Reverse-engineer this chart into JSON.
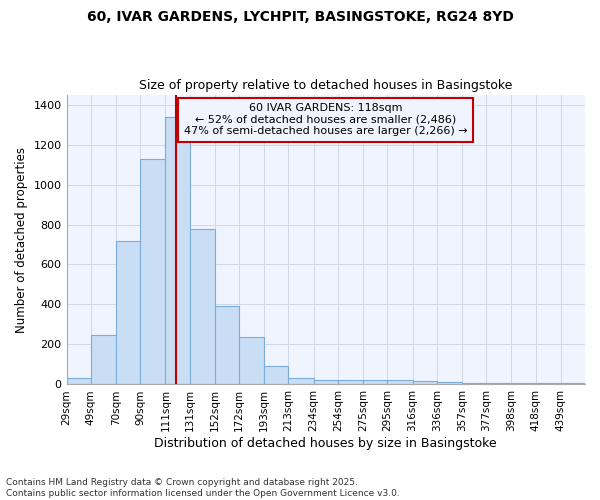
{
  "title1": "60, IVAR GARDENS, LYCHPIT, BASINGSTOKE, RG24 8YD",
  "title2": "Size of property relative to detached houses in Basingstoke",
  "xlabel": "Distribution of detached houses by size in Basingstoke",
  "ylabel": "Number of detached properties",
  "footer1": "Contains HM Land Registry data © Crown copyright and database right 2025.",
  "footer2": "Contains public sector information licensed under the Open Government Licence v3.0.",
  "annotation_title": "60 IVAR GARDENS: 118sqm",
  "annotation_line1": "← 52% of detached houses are smaller (2,486)",
  "annotation_line2": "47% of semi-detached houses are larger (2,266) →",
  "bar_categories": [
    "29sqm",
    "49sqm",
    "70sqm",
    "90sqm",
    "111sqm",
    "131sqm",
    "152sqm",
    "172sqm",
    "193sqm",
    "213sqm",
    "234sqm",
    "254sqm",
    "275sqm",
    "295sqm",
    "316sqm",
    "336sqm",
    "357sqm",
    "377sqm",
    "398sqm",
    "418sqm",
    "439sqm"
  ],
  "bar_left_edges": [
    29,
    49,
    70,
    90,
    111,
    131,
    152,
    172,
    193,
    213,
    234,
    254,
    275,
    295,
    316,
    336,
    357,
    377,
    398,
    418,
    439
  ],
  "bar_widths": [
    20,
    21,
    20,
    21,
    20,
    21,
    20,
    21,
    20,
    21,
    20,
    21,
    20,
    21,
    20,
    21,
    20,
    21,
    20,
    21,
    20
  ],
  "bar_heights": [
    30,
    245,
    720,
    1130,
    1340,
    780,
    390,
    235,
    90,
    30,
    20,
    20,
    20,
    20,
    15,
    10,
    5,
    5,
    5,
    5,
    5
  ],
  "bar_color": "#c9ddf5",
  "bar_edge_color": "#7aaddc",
  "vline_x": 120,
  "vline_color": "#c00000",
  "annotation_box_color": "#c00000",
  "background_color": "#ffffff",
  "plot_bg_color": "#f0f4ff",
  "grid_color": "#d0d8e8",
  "ylim": [
    0,
    1450
  ],
  "yticks": [
    0,
    200,
    400,
    600,
    800,
    1000,
    1200,
    1400
  ]
}
